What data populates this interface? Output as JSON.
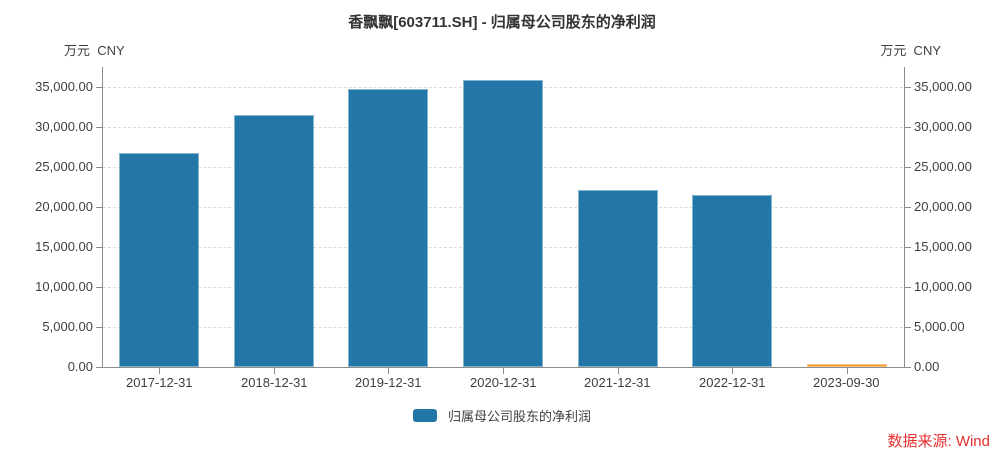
{
  "title": "香飘飘[603711.SH] - 归属母公司股东的净利润",
  "unit_label_left": "万元  CNY",
  "unit_label_right": "万元  CNY",
  "legend": {
    "label": "归属母公司股东的净利润"
  },
  "source_note": "数据来源: Wind",
  "colors": {
    "bar": "#2377A8",
    "bar_highlight": "#F5941F",
    "grid": "#DCDCDC",
    "axis": "#8C8C8C",
    "text": "#404040",
    "title": "#333333",
    "source": "#E62E2E"
  },
  "chart_data": {
    "type": "bar",
    "title": "香飘飘[603711.SH] - 归属母公司股东的净利润",
    "ylabel": "万元 CNY",
    "categories": [
      "2017-12-31",
      "2018-12-31",
      "2019-12-31",
      "2020-12-31",
      "2021-12-31",
      "2022-12-31",
      "2023-09-30"
    ],
    "values": [
      26800,
      31450,
      34700,
      35850,
      22150,
      21450,
      390
    ],
    "bar_colors": [
      "#2377A8",
      "#2377A8",
      "#2377A8",
      "#2377A8",
      "#2377A8",
      "#2377A8",
      "#F5941F"
    ],
    "series_name": "归属母公司股东的净利润",
    "ylim": [
      0,
      37500
    ],
    "yticks": [
      0,
      5000,
      10000,
      15000,
      20000,
      25000,
      30000,
      35000
    ],
    "ytick_labels": [
      "0.00",
      "5,000.00",
      "10,000.00",
      "15,000.00",
      "20,000.00",
      "25,000.00",
      "30,000.00",
      "35,000.00"
    ],
    "grid": true,
    "dual_y_axis": true,
    "legend_position": "bottom"
  }
}
